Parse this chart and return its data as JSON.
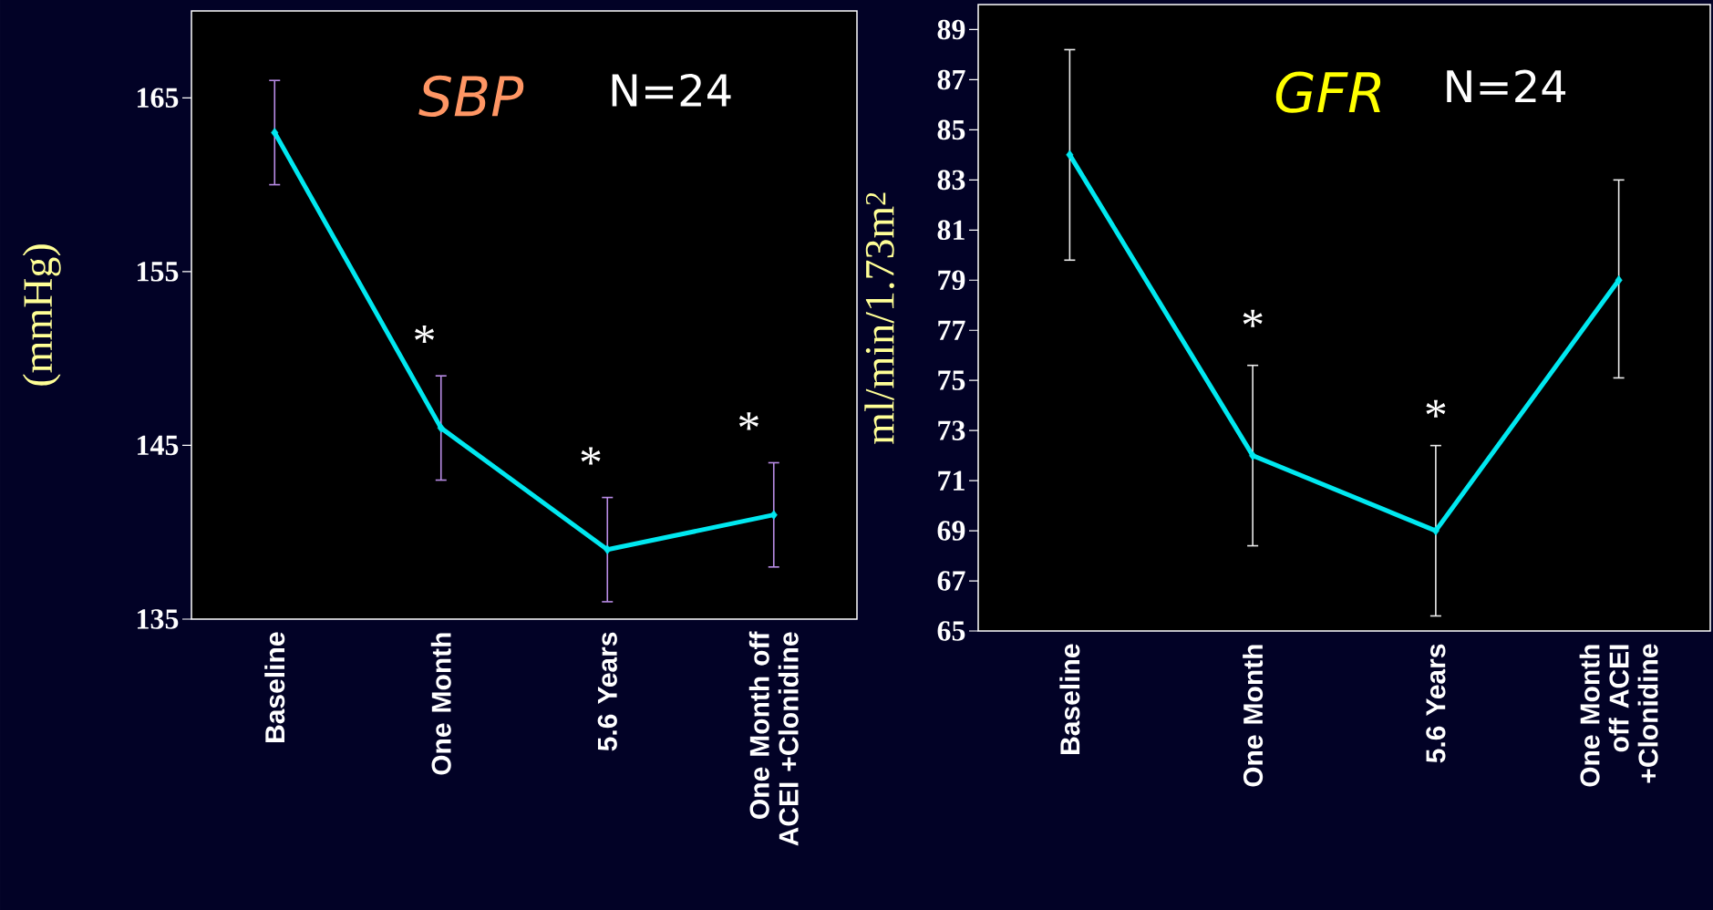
{
  "chart_data": [
    {
      "type": "line",
      "title": "SBP",
      "ylabel": "(mmHg)",
      "categories": [
        "Baseline",
        "One Month",
        "5.6 Years",
        "One Month off ACEI +Clonidine"
      ],
      "series": [
        {
          "color": "#00e8f0",
          "values": [
            163,
            146,
            139,
            141
          ],
          "errors": [
            [
              160,
              166
            ],
            [
              143,
              149
            ],
            [
              136,
              142
            ],
            [
              138,
              144
            ]
          ]
        }
      ],
      "ylim": [
        135,
        170
      ],
      "yticks": [
        135,
        145,
        155,
        165
      ],
      "marker": "diamond",
      "annotations": [
        "N=24",
        "*",
        "*",
        "*"
      ]
    },
    {
      "type": "line",
      "title": "GFR",
      "ylabel": "ml/min/1.73m$^{2}$",
      "categories": [
        "Baseline",
        "One Month",
        "5.6 Years",
        "One Month off ACEI +Clonidine"
      ],
      "series": [
        {
          "color": "#00e8f0",
          "values": [
            84,
            72,
            69,
            79
          ],
          "errors": [
            [
              79.8,
              88.2
            ],
            [
              68.4,
              75.6
            ],
            [
              65.6,
              72.4
            ],
            [
              75.1,
              83
            ]
          ]
        }
      ],
      "ylim": [
        65,
        90
      ],
      "yticks": [
        65,
        67,
        69,
        71,
        73,
        75,
        77,
        79,
        81,
        83,
        85,
        87,
        89
      ],
      "marker": "diamond",
      "annotations": [
        "N=24",
        "*",
        "*"
      ]
    }
  ]
}
